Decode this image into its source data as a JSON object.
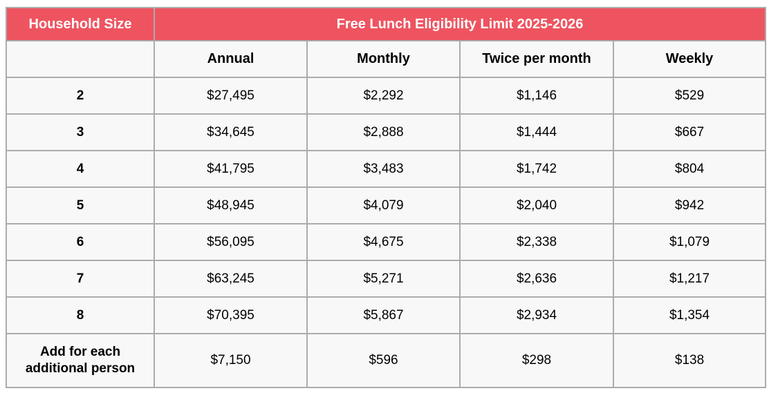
{
  "chart_data": {
    "type": "table",
    "title": "Free Lunch Eligibility Limit 2025-2026",
    "corner_header": "Household Size",
    "columns": [
      "Annual",
      "Monthly",
      "Twice per month",
      "Weekly"
    ],
    "rows": [
      {
        "label": "2",
        "values": [
          "$27,495",
          "$2,292",
          "$1,146",
          "$529"
        ]
      },
      {
        "label": "3",
        "values": [
          "$34,645",
          "$2,888",
          "$1,444",
          "$667"
        ]
      },
      {
        "label": "4",
        "values": [
          "$41,795",
          "$3,483",
          "$1,742",
          "$804"
        ]
      },
      {
        "label": "5",
        "values": [
          "$48,945",
          "$4,079",
          "$2,040",
          "$942"
        ]
      },
      {
        "label": "6",
        "values": [
          "$56,095",
          "$4,675",
          "$2,338",
          "$1,079"
        ]
      },
      {
        "label": "7",
        "values": [
          "$63,245",
          "$5,271",
          "$2,636",
          "$1,217"
        ]
      },
      {
        "label": "8",
        "values": [
          "$70,395",
          "$5,867",
          "$2,934",
          "$1,354"
        ]
      },
      {
        "label": "Add for each additional person",
        "values": [
          "$7,150",
          "$596",
          "$298",
          "$138"
        ]
      }
    ],
    "colors": {
      "header_bg": "#ee5460",
      "header_text": "#ffffff",
      "cell_bg": "#f8f8f8",
      "border": "#ababab",
      "body_text": "#000000"
    },
    "layout": {
      "grid": "on",
      "header_span_columns": 4
    }
  }
}
